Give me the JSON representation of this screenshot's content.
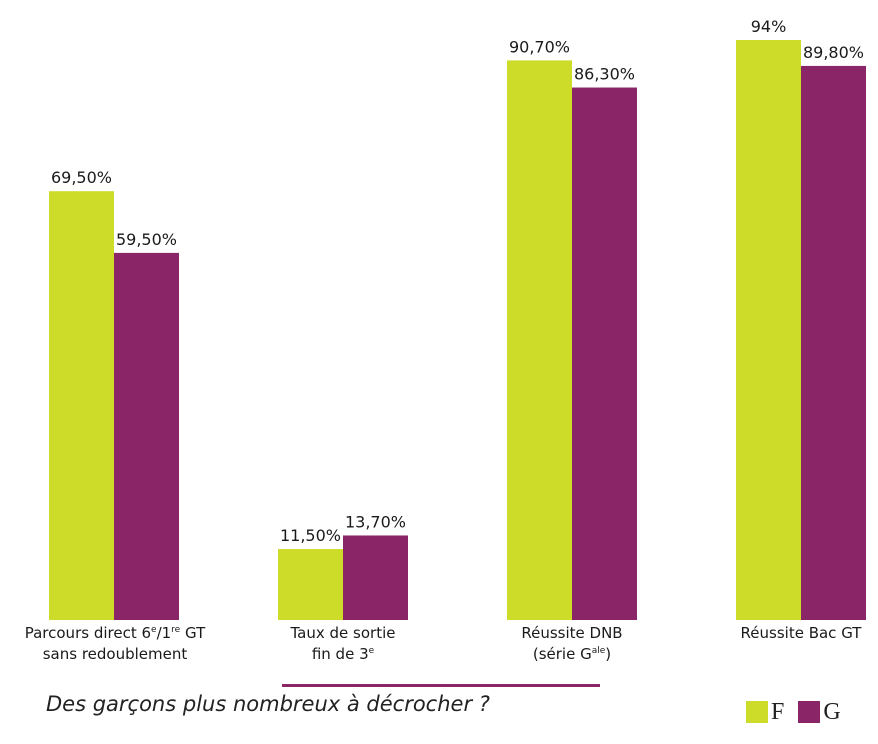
{
  "chart_data": {
    "type": "bar",
    "categories": [
      "Parcours direct 6e/1re GT sans redoublement",
      "Taux de sortie fin de 3e",
      "Réussite DNB (série Gale)",
      "Réussite Bac GT"
    ],
    "category_labels": [
      {
        "line1_parts": [
          "Parcours direct 6",
          "e",
          "/1",
          "re",
          " GT"
        ],
        "line2": "sans redoublement"
      },
      {
        "line1_parts": [
          "Taux de sortie"
        ],
        "line2_parts": [
          "fin de 3",
          "e"
        ]
      },
      {
        "line1_parts": [
          "Réussite DNB"
        ],
        "line2_parts": [
          "(série G",
          "ale",
          ")"
        ]
      },
      {
        "line1_parts": [
          "Réussite Bac GT"
        ]
      }
    ],
    "series": [
      {
        "name": "F",
        "color": "#cddc29",
        "values": [
          69.5,
          11.5,
          90.7,
          94
        ],
        "labels": [
          "69,50%",
          "11,50%",
          "90,70%",
          "94%"
        ]
      },
      {
        "name": "G",
        "color": "#8a2568",
        "values": [
          59.5,
          13.7,
          86.3,
          89.8
        ],
        "labels": [
          "59,50%",
          "13,70%",
          "86,30%",
          "89,80%"
        ]
      }
    ],
    "ylim": [
      0,
      100
    ],
    "grid": false,
    "legend_position": "bottom-right"
  },
  "caption": "Des garçons plus nombreux à décrocher ?"
}
